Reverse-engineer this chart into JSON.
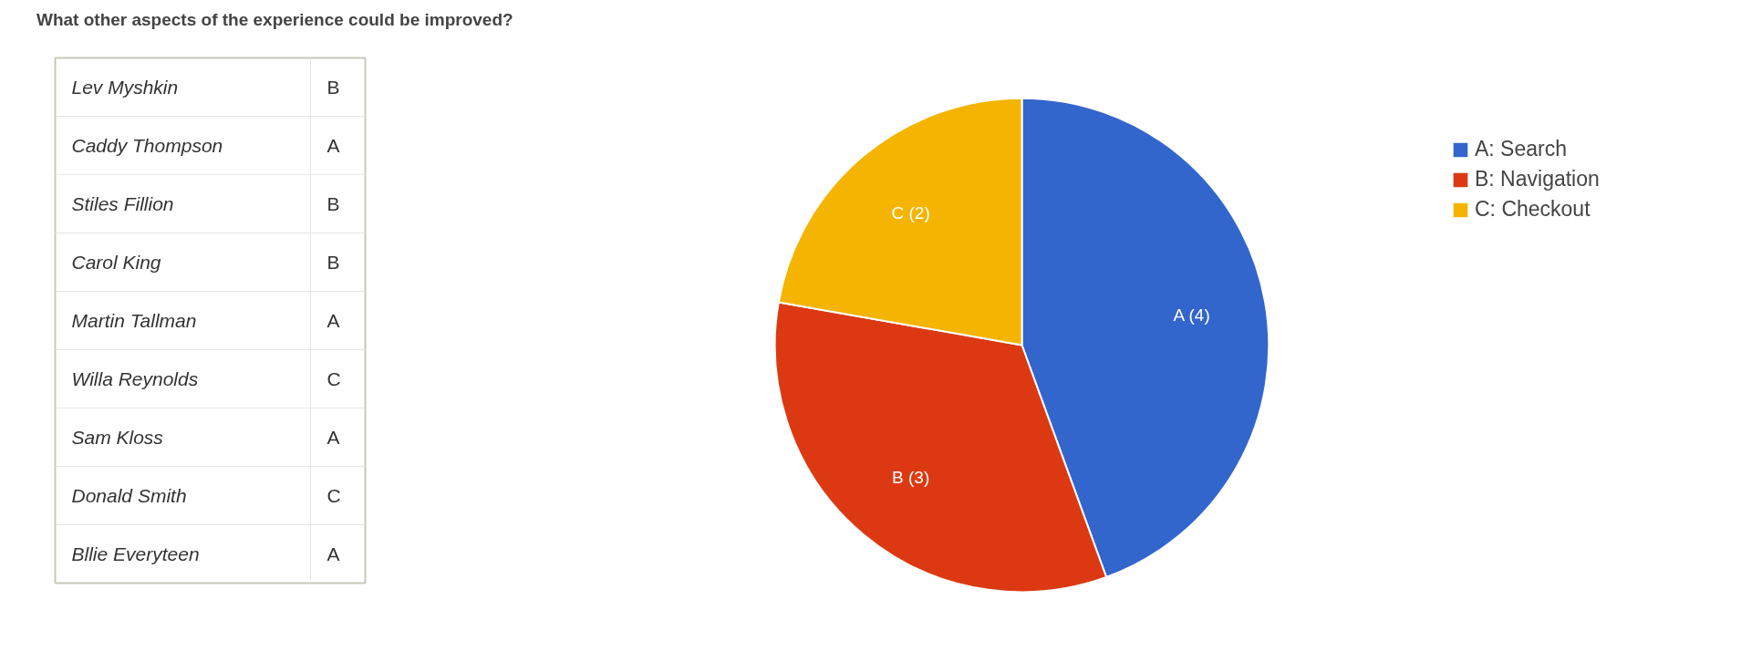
{
  "chart_data": [
    {
      "type": "other",
      "title": "What other aspects of the experience could be improved?",
      "annotations": [
        "Lev Myshkin",
        "B",
        "Caddy Thompson",
        "A",
        "Stiles Fillion",
        "B",
        "Carol King",
        "B",
        "Martin Tallman",
        "A",
        "Willa Reynolds",
        "C",
        "Sam Kloss",
        "A",
        "Donald Smith",
        "C",
        "Bllie Everyteen",
        "A"
      ]
    },
    {
      "type": "pie",
      "categories": [
        "A: Search",
        "B: Navigation",
        "C: Checkout"
      ],
      "values": [
        4,
        3,
        2
      ],
      "colors": [
        "#3366cc",
        "#dc3912",
        "#f4b400"
      ],
      "value_labels": [
        "A (4)",
        "B (3)",
        "C (2)"
      ],
      "legend": "top right"
    }
  ]
}
